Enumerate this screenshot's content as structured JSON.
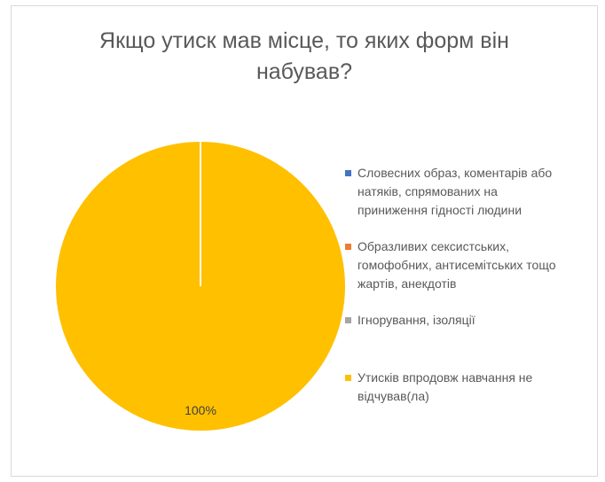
{
  "chart_data": {
    "type": "pie",
    "title": [
      "Якщо утиск мав місце, то яких форм він",
      "набував?"
    ],
    "categories": [
      "Словесних образ, коментарів або натяків, спрямованих на приниження гідності людини",
      "Образливих сексистських, гомофобних, антисемітських тощо жартів, анекдотів",
      "Ігнорування, ізоляції",
      "Утисків впродовж навчання не відчував(ла)"
    ],
    "legend_lines": [
      [
        "Словесних образ, коментарів або",
        "натяків, спрямованих на",
        "приниження гідності людини"
      ],
      [
        "Образливих сексистських,",
        "гомофобних, антисемітських тощо",
        "жартів, анекдотів"
      ],
      [
        "Ігнорування, ізоляції"
      ],
      [
        "Утисків впродовж навчання не",
        "відчував(ла)"
      ]
    ],
    "values": [
      0,
      0,
      0,
      100
    ],
    "data_labels": [
      "",
      "",
      "",
      "100%"
    ],
    "colors": [
      "#4472c4",
      "#ed7d31",
      "#a5a5a5",
      "#ffc000"
    ],
    "legend_position": "right"
  }
}
